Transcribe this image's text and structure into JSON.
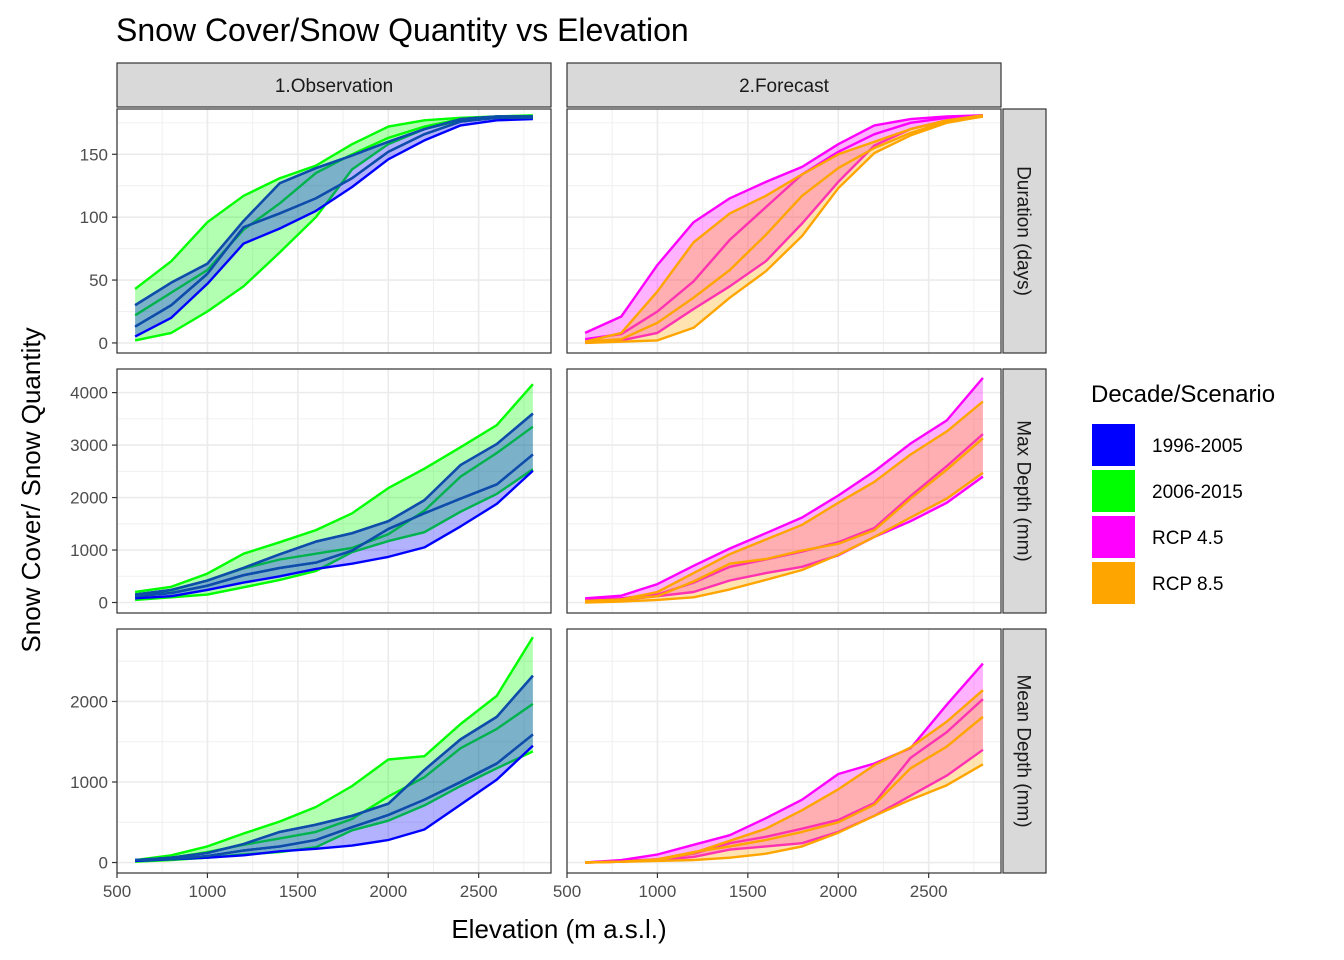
{
  "chart_data": {
    "type": "area",
    "title": "Snow Cover/Snow Quantity vs Elevation",
    "xlabel": "Elevation (m a.s.l.)",
    "ylabel": "Snow Cover/ Snow Quantity",
    "xlim": [
      500,
      2900
    ],
    "x_ticks": [
      500,
      1000,
      1500,
      2000,
      2500
    ],
    "grid": true,
    "columns": [
      "1.Observation",
      "2.Forecast"
    ],
    "rows": [
      {
        "label": "Duration (days)",
        "ylim": [
          -8,
          186
        ],
        "y_ticks": [
          0,
          50,
          100,
          150
        ]
      },
      {
        "label": "Max Depth (mm)",
        "ylim": [
          -200,
          4450
        ],
        "y_ticks": [
          0,
          1000,
          2000,
          3000,
          4000
        ]
      },
      {
        "label": "Mean Depth (mm)",
        "ylim": [
          -130,
          2900
        ],
        "y_ticks": [
          0,
          1000,
          2000
        ]
      }
    ],
    "legend": {
      "title": "Decade/Scenario",
      "position": "right",
      "items": [
        {
          "label": "1996-2005",
          "color": "#0000ff"
        },
        {
          "label": "2006-2015",
          "color": "#00ff00"
        },
        {
          "label": "RCP 4.5",
          "color": "#ff00ff"
        },
        {
          "label": "RCP 8.5",
          "color": "#ffa500"
        }
      ]
    },
    "x": [
      600,
      800,
      1000,
      1200,
      1400,
      1600,
      1800,
      2000,
      2200,
      2400,
      2600,
      2800
    ],
    "panels": [
      {
        "row": 0,
        "col": 0,
        "series": [
          {
            "name": "2006-2015",
            "color": "#00ff00",
            "upper": [
              43,
              65,
              96,
              117,
              131,
              141,
              158,
              172,
              177,
              179,
              180,
              181
            ],
            "mid": [
              22,
              40,
              58,
              90,
              111,
              135,
              150,
              163,
              172,
              178,
              180,
              180
            ],
            "lower": [
              2,
              8,
              25,
              45,
              72,
              100,
              138,
              158,
              170,
              177,
              179,
              180
            ]
          },
          {
            "name": "1996-2005",
            "color": "#0000ff",
            "upper": [
              30,
              48,
              63,
              97,
              127,
              139,
              149,
              160,
              170,
              178,
              180,
              180
            ],
            "mid": [
              13,
              30,
              55,
              92,
              103,
              115,
              131,
              152,
              166,
              176,
              179,
              179
            ],
            "lower": [
              5,
              20,
              47,
              79,
              91,
              105,
              124,
              146,
              161,
              173,
              177,
              178
            ]
          }
        ]
      },
      {
        "row": 0,
        "col": 1,
        "series": [
          {
            "name": "RCP 4.5",
            "color": "#ff00ff",
            "upper": [
              8,
              21,
              62,
              96,
              115,
              128,
              140,
              158,
              173,
              178,
              180,
              181
            ],
            "mid": [
              3,
              7,
              25,
              49,
              82,
              108,
              134,
              152,
              166,
              175,
              179,
              181
            ],
            "lower": [
              0,
              2,
              8,
              27,
              45,
              65,
              95,
              128,
              157,
              170,
              177,
              180
            ]
          },
          {
            "name": "RCP 8.5",
            "color": "#ffa500",
            "upper": [
              1,
              8,
              41,
              80,
              103,
              117,
              134,
              150,
              160,
              170,
              177,
              181
            ],
            "mid": [
              1,
              3,
              16,
              36,
              58,
              86,
              117,
              139,
              155,
              167,
              176,
              180
            ],
            "lower": [
              0,
              1,
              2,
              12,
              36,
              57,
              85,
              123,
              151,
              165,
              175,
              180
            ]
          }
        ]
      },
      {
        "row": 1,
        "col": 0,
        "series": [
          {
            "name": "2006-2015",
            "color": "#00ff00",
            "upper": [
              200,
              300,
              550,
              930,
              1150,
              1380,
              1700,
              2180,
              2550,
              2960,
              3380,
              4160
            ],
            "mid": [
              150,
              230,
              420,
              650,
              820,
              930,
              1040,
              1300,
              1750,
              2400,
              2850,
              3350
            ],
            "lower": [
              50,
              100,
              150,
              290,
              430,
              600,
              960,
              1170,
              1340,
              1730,
              2070,
              2540
            ]
          },
          {
            "name": "1996-2005",
            "color": "#0000ff",
            "upper": [
              150,
              240,
              420,
              660,
              920,
              1160,
              1320,
              1550,
              1950,
              2620,
              3020,
              3600
            ],
            "mid": [
              120,
              180,
              320,
              520,
              660,
              760,
              990,
              1400,
              1700,
              1980,
              2250,
              2820
            ],
            "lower": [
              80,
              120,
              240,
              380,
              500,
              640,
              740,
              870,
              1050,
              1450,
              1880,
              2510
            ]
          }
        ]
      },
      {
        "row": 1,
        "col": 1,
        "series": [
          {
            "name": "RCP 4.5",
            "color": "#ff00ff",
            "upper": [
              80,
              130,
              350,
              700,
              1030,
              1320,
              1620,
              2040,
              2500,
              3030,
              3470,
              4280
            ],
            "mid": [
              50,
              80,
              150,
              380,
              680,
              820,
              970,
              1150,
              1420,
              2030,
              2600,
              3210
            ],
            "lower": [
              30,
              50,
              120,
              200,
              420,
              560,
              680,
              900,
              1250,
              1550,
              1900,
              2400
            ]
          },
          {
            "name": "RCP 8.5",
            "color": "#ffa500",
            "upper": [
              30,
              60,
              200,
              560,
              920,
              1200,
              1480,
              1900,
              2300,
              2820,
              3260,
              3830
            ],
            "mid": [
              30,
              60,
              120,
              400,
              740,
              830,
              990,
              1120,
              1380,
              1980,
              2530,
              3130
            ],
            "lower": [
              0,
              20,
              50,
              100,
              250,
              430,
              620,
              910,
              1250,
              1620,
              1980,
              2470
            ]
          }
        ]
      },
      {
        "row": 2,
        "col": 0,
        "series": [
          {
            "name": "2006-2015",
            "color": "#00ff00",
            "upper": [
              30,
              90,
              200,
              360,
              510,
              690,
              950,
              1280,
              1320,
              1720,
              2070,
              2800
            ],
            "mid": [
              30,
              60,
              130,
              220,
              300,
              380,
              540,
              820,
              1060,
              1420,
              1660,
              1970
            ],
            "lower": [
              10,
              30,
              60,
              100,
              130,
              190,
              400,
              520,
              710,
              950,
              1170,
              1380
            ]
          },
          {
            "name": "1996-2005",
            "color": "#0000ff",
            "upper": [
              30,
              60,
              120,
              230,
              380,
              470,
              580,
              730,
              1150,
              1530,
              1810,
              2320
            ],
            "mid": [
              30,
              40,
              80,
              150,
              200,
              280,
              440,
              590,
              780,
              1000,
              1230,
              1590
            ],
            "lower": [
              20,
              40,
              60,
              90,
              140,
              170,
              210,
              280,
              410,
              720,
              1030,
              1450
            ]
          }
        ]
      },
      {
        "row": 2,
        "col": 1,
        "series": [
          {
            "name": "RCP 4.5",
            "color": "#ff00ff",
            "upper": [
              0,
              30,
              100,
              220,
              340,
              550,
              780,
              1100,
              1230,
              1420,
              1960,
              2470
            ],
            "mid": [
              0,
              20,
              40,
              110,
              240,
              320,
              420,
              530,
              740,
              1300,
              1620,
              2030
            ],
            "lower": [
              0,
              10,
              30,
              70,
              160,
              200,
              240,
              380,
              580,
              830,
              1080,
              1400
            ]
          },
          {
            "name": "RCP 8.5",
            "color": "#ffa500",
            "upper": [
              0,
              10,
              30,
              120,
              270,
              420,
              650,
              910,
              1210,
              1430,
              1750,
              2140
            ],
            "mid": [
              0,
              10,
              40,
              130,
              200,
              280,
              380,
              500,
              720,
              1170,
              1440,
              1810
            ],
            "lower": [
              0,
              10,
              20,
              30,
              60,
              110,
              200,
              370,
              580,
              780,
              960,
              1220
            ]
          }
        ]
      }
    ]
  }
}
